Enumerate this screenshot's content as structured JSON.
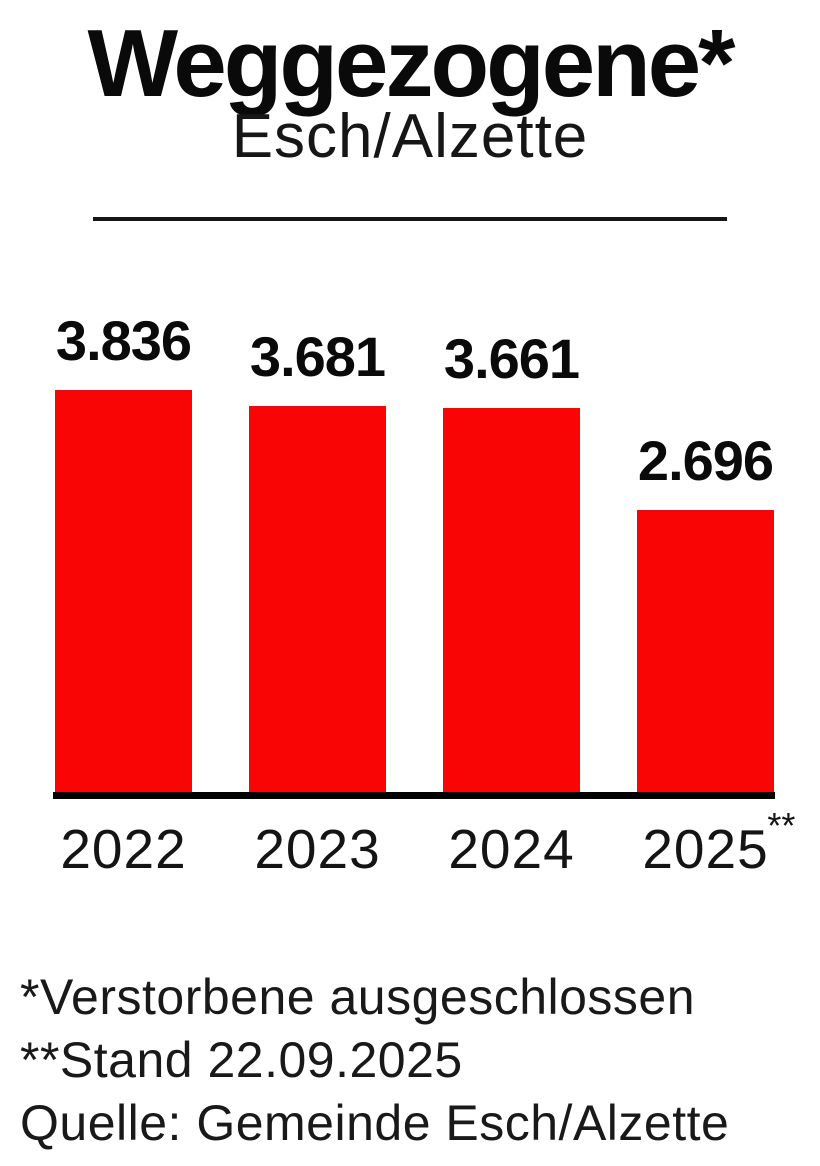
{
  "title": "Weggezogene*",
  "subtitle": "Esch/Alzette",
  "chart_data": {
    "type": "bar",
    "title": "Weggezogene*",
    "subtitle": "Esch/Alzette",
    "categories": [
      "2022",
      "2023",
      "2024",
      "2025"
    ],
    "category_suffixes": [
      "",
      "",
      "",
      "**"
    ],
    "values": [
      3836,
      3681,
      3661,
      2696
    ],
    "value_labels": [
      "3.836",
      "3.681",
      "3.661",
      "2.696"
    ],
    "bar_color": "#f90505",
    "axis_color": "#000000",
    "xlabel": "",
    "ylabel": "",
    "ylim": [
      0,
      4000
    ],
    "grid": false,
    "legend": false,
    "value_label_position": "above-bar"
  },
  "footnotes": [
    "*Verstorbene ausgeschlossen",
    "**Stand 22.09.2025",
    "Quelle: Gemeinde Esch/Alzette"
  ],
  "colors": {
    "background": "#ffffff",
    "text": "#0a0a0a",
    "bar": "#f90505",
    "axis": "#000000"
  }
}
